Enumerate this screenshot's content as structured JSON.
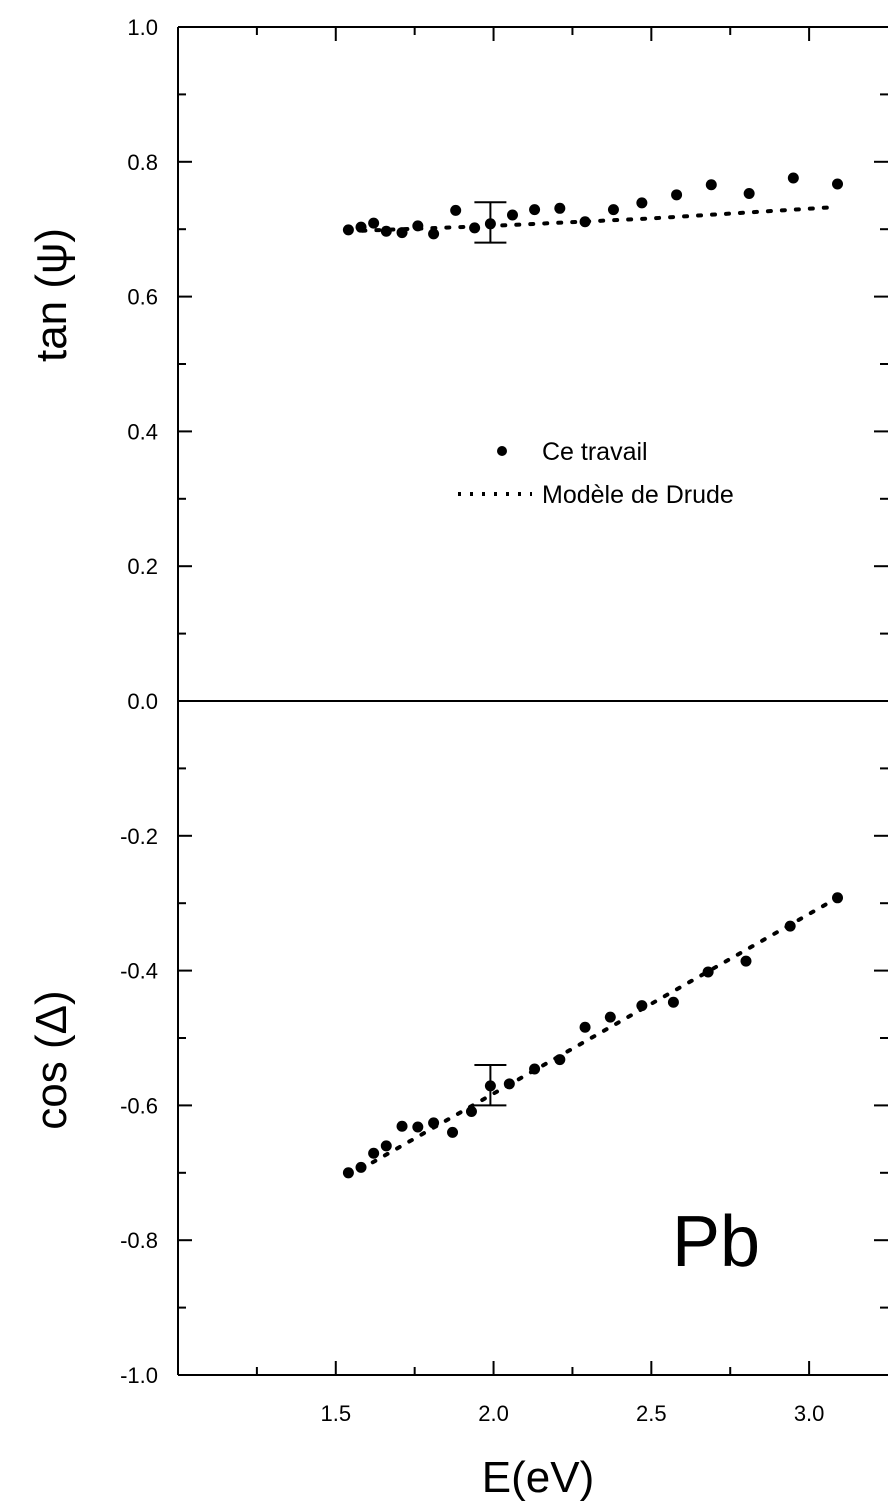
{
  "chart_data": {
    "type": "scatter",
    "xlabel": "E(eV)",
    "ylabel_top": "tan (ψ)",
    "ylabel_bottom": "cos (Δ)",
    "xlim": [
      1.0,
      3.25
    ],
    "ylim": [
      -1.0,
      1.0
    ],
    "x_ticks": [
      "1.5",
      "2.0",
      "2.5",
      "3.0"
    ],
    "y_ticks": [
      "1.0",
      "0.8",
      "0.6",
      "0.4",
      "0.2",
      "0.0",
      "-0.2",
      "-0.4",
      "-0.6",
      "-0.8",
      "-1.0"
    ],
    "zero_line": true,
    "grid": false,
    "legend_position": "center",
    "annotation": "Pb",
    "legend": {
      "measured": "Ce travail",
      "model": "Modèle de  Drude"
    },
    "series": [
      {
        "key": "tan_measured",
        "style": "markers",
        "x": [
          1.54,
          1.58,
          1.62,
          1.66,
          1.71,
          1.76,
          1.81,
          1.88,
          1.94,
          1.99,
          2.06,
          2.13,
          2.21,
          2.29,
          2.38,
          2.47,
          2.58,
          2.69,
          2.81,
          2.95,
          3.09
        ],
        "y": [
          0.699,
          0.703,
          0.709,
          0.697,
          0.695,
          0.705,
          0.693,
          0.728,
          0.702,
          0.708,
          0.721,
          0.729,
          0.731,
          0.711,
          0.729,
          0.739,
          0.751,
          0.766,
          0.753,
          0.776,
          0.767
        ],
        "error_bar": {
          "x": 1.99,
          "low": 0.68,
          "high": 0.74
        }
      },
      {
        "key": "tan_model",
        "style": "dotted",
        "x": [
          1.54,
          2.0,
          2.5,
          3.09
        ],
        "y": [
          0.697,
          0.705,
          0.716,
          0.733
        ]
      },
      {
        "key": "cos_measured",
        "style": "markers",
        "x": [
          1.54,
          1.58,
          1.62,
          1.66,
          1.71,
          1.76,
          1.81,
          1.87,
          1.93,
          1.99,
          2.05,
          2.13,
          2.21,
          2.29,
          2.37,
          2.47,
          2.57,
          2.68,
          2.8,
          2.94,
          3.09
        ],
        "y": [
          -0.7,
          -0.692,
          -0.671,
          -0.66,
          -0.631,
          -0.632,
          -0.626,
          -0.64,
          -0.609,
          -0.571,
          -0.568,
          -0.546,
          -0.532,
          -0.484,
          -0.469,
          -0.452,
          -0.447,
          -0.402,
          -0.386,
          -0.334,
          -0.292
        ],
        "error_bar": {
          "x": 1.99,
          "low": -0.6,
          "high": -0.54
        }
      },
      {
        "key": "cos_model",
        "style": "dotted",
        "x": [
          1.54,
          3.09
        ],
        "y": [
          -0.705,
          -0.292
        ]
      }
    ]
  }
}
